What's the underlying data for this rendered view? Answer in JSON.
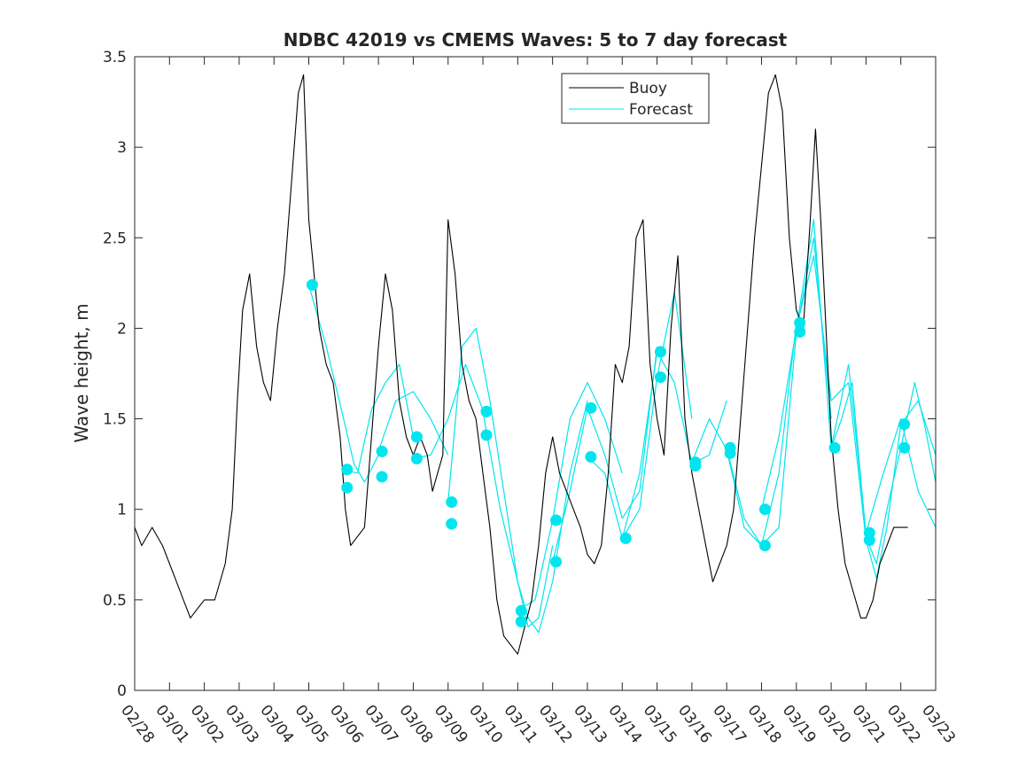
{
  "chart_data": {
    "type": "line",
    "title": "NDBC 42019 vs CMEMS Waves: 5 to 7 day forecast",
    "xlabel": "",
    "ylabel": "Wave height, m",
    "ylim": [
      0,
      3.5
    ],
    "xlim": [
      0,
      23
    ],
    "yticks": [
      0,
      0.5,
      1,
      1.5,
      2,
      2.5,
      3,
      3.5
    ],
    "ytick_labels": [
      "0",
      "0.5",
      "1",
      "1.5",
      "2",
      "2.5",
      "3",
      "3.5"
    ],
    "xticks": [
      0,
      1,
      2,
      3,
      4,
      5,
      6,
      7,
      8,
      9,
      10,
      11,
      12,
      13,
      14,
      15,
      16,
      17,
      18,
      19,
      20,
      21,
      22,
      23
    ],
    "xtick_labels": [
      "02/28",
      "03/01",
      "03/02",
      "03/03",
      "03/04",
      "03/05",
      "03/06",
      "03/07",
      "03/08",
      "03/09",
      "03/10",
      "03/11",
      "03/12",
      "03/13",
      "03/14",
      "03/15",
      "03/16",
      "03/17",
      "03/18",
      "03/19",
      "03/20",
      "03/21",
      "03/22",
      "03/23"
    ],
    "legend": {
      "position": "top-right",
      "entries": [
        "Buoy",
        "Forecast"
      ]
    },
    "colors": {
      "buoy": "#000000",
      "forecast": "#00e5ee",
      "axis": "#262626"
    },
    "series": [
      {
        "name": "Buoy",
        "x": [
          0,
          0.2,
          0.5,
          0.8,
          1.0,
          1.2,
          1.4,
          1.6,
          1.8,
          2.0,
          2.3,
          2.6,
          2.8,
          2.95,
          3.1,
          3.3,
          3.5,
          3.7,
          3.9,
          4.1,
          4.3,
          4.5,
          4.7,
          4.85,
          5.0,
          5.1,
          5.3,
          5.5,
          5.7,
          5.9,
          6.05,
          6.2,
          6.4,
          6.6,
          6.8,
          7.0,
          7.2,
          7.4,
          7.6,
          7.8,
          8.0,
          8.2,
          8.4,
          8.55,
          8.7,
          8.85,
          9.0,
          9.2,
          9.4,
          9.6,
          9.8,
          10.0,
          10.2,
          10.4,
          10.6,
          10.8,
          11.0,
          11.2,
          11.4,
          11.6,
          11.8,
          12.0,
          12.2,
          12.4,
          12.6,
          12.8,
          13.0,
          13.2,
          13.4,
          13.6,
          13.8,
          14.0,
          14.2,
          14.4,
          14.6,
          14.8,
          15.0,
          15.2,
          15.4,
          15.6,
          15.8,
          16.0,
          16.2,
          16.4,
          16.6,
          16.8,
          17.0,
          17.2,
          17.4,
          17.6,
          17.8,
          18.0,
          18.2,
          18.4,
          18.6,
          18.8,
          19.0,
          19.2,
          19.4,
          19.55,
          19.7,
          19.85,
          20.0,
          20.2,
          20.4,
          20.55,
          20.7,
          20.85,
          21.0,
          21.2,
          21.4,
          21.6,
          21.8,
          22.0,
          22.2
        ],
        "values": [
          0.9,
          0.8,
          0.9,
          0.8,
          0.7,
          0.6,
          0.5,
          0.4,
          0.45,
          0.5,
          0.5,
          0.7,
          1.0,
          1.6,
          2.1,
          2.3,
          1.9,
          1.7,
          1.6,
          2.0,
          2.3,
          2.8,
          3.3,
          3.4,
          2.6,
          2.4,
          2.0,
          1.8,
          1.7,
          1.4,
          1.0,
          0.8,
          0.85,
          0.9,
          1.4,
          1.9,
          2.3,
          2.1,
          1.6,
          1.4,
          1.3,
          1.4,
          1.3,
          1.1,
          1.2,
          1.3,
          2.6,
          2.3,
          1.8,
          1.6,
          1.5,
          1.2,
          0.9,
          0.5,
          0.3,
          0.25,
          0.2,
          0.35,
          0.5,
          0.8,
          1.2,
          1.4,
          1.2,
          1.1,
          1.0,
          0.9,
          0.75,
          0.7,
          0.8,
          1.2,
          1.8,
          1.7,
          1.9,
          2.5,
          2.6,
          1.8,
          1.5,
          1.3,
          2.0,
          2.4,
          1.5,
          1.2,
          1.0,
          0.8,
          0.6,
          0.7,
          0.8,
          1.0,
          1.5,
          2.0,
          2.5,
          2.9,
          3.3,
          3.4,
          3.2,
          2.5,
          2.1,
          2.0,
          2.6,
          3.1,
          2.6,
          2.0,
          1.4,
          1.0,
          0.7,
          0.6,
          0.5,
          0.4,
          0.4,
          0.5,
          0.7,
          0.8,
          0.9,
          0.9,
          0.9
        ]
      },
      {
        "name": "Forecast",
        "x": [
          5.0,
          5.5,
          6.0,
          6.3,
          6.6,
          7.0
        ],
        "values": [
          2.24,
          1.9,
          1.5,
          1.25,
          1.15,
          1.3
        ]
      },
      {
        "name": "Forecast",
        "x": [
          6.0,
          6.4,
          6.8,
          7.2,
          7.6,
          8.0
        ],
        "values": [
          1.22,
          1.2,
          1.55,
          1.7,
          1.8,
          1.4
        ]
      },
      {
        "name": "Forecast",
        "x": [
          7.0,
          7.5,
          8.0,
          8.5,
          9.0
        ],
        "values": [
          1.32,
          1.6,
          1.65,
          1.5,
          1.3
        ]
      },
      {
        "name": "Forecast",
        "x": [
          8.0,
          8.5,
          9.0,
          9.5,
          10.0
        ],
        "values": [
          1.28,
          1.3,
          1.5,
          1.8,
          1.55
        ]
      },
      {
        "name": "Forecast",
        "x": [
          9.0,
          9.4,
          9.8,
          10.2,
          10.6,
          11.0,
          11.3,
          11.6,
          12.0
        ],
        "values": [
          1.04,
          1.9,
          2.0,
          1.6,
          1.1,
          0.6,
          0.35,
          0.4,
          0.8
        ]
      },
      {
        "name": "Forecast",
        "x": [
          10.0,
          10.5,
          11.0,
          11.3,
          11.6,
          12.0,
          12.5,
          13.0
        ],
        "values": [
          1.54,
          1.0,
          0.6,
          0.4,
          0.32,
          0.6,
          1.2,
          1.6
        ]
      },
      {
        "name": "Forecast",
        "x": [
          11.0,
          11.5,
          12.0,
          12.5,
          13.0,
          13.5,
          14.0
        ],
        "values": [
          0.44,
          0.5,
          0.94,
          1.5,
          1.7,
          1.5,
          1.2
        ]
      },
      {
        "name": "Forecast",
        "x": [
          12.0,
          12.5,
          13.0,
          13.5,
          14.0,
          14.5,
          15.0
        ],
        "values": [
          0.71,
          1.1,
          1.56,
          1.3,
          0.95,
          1.1,
          1.9
        ]
      },
      {
        "name": "Forecast",
        "x": [
          13.0,
          13.5,
          14.0,
          14.5,
          15.0,
          15.5,
          16.0
        ],
        "values": [
          1.29,
          1.2,
          0.84,
          1.0,
          1.73,
          2.2,
          1.5
        ]
      },
      {
        "name": "Forecast",
        "x": [
          14.0,
          14.5,
          15.0,
          15.5,
          16.0,
          16.5,
          17.0
        ],
        "values": [
          0.84,
          1.2,
          1.87,
          1.7,
          1.25,
          1.3,
          1.6
        ]
      },
      {
        "name": "Forecast",
        "x": [
          16.0,
          16.5,
          17.0,
          17.5,
          18.0,
          18.5,
          19.0
        ],
        "values": [
          1.26,
          1.5,
          1.33,
          0.9,
          0.8,
          1.2,
          2.03
        ]
      },
      {
        "name": "Forecast",
        "x": [
          17.0,
          17.5,
          18.0,
          18.5,
          19.0,
          19.5,
          20.0
        ],
        "values": [
          1.34,
          0.95,
          0.8,
          0.9,
          1.98,
          2.5,
          1.5
        ]
      },
      {
        "name": "Forecast",
        "x": [
          18.0,
          18.5,
          19.0,
          19.5,
          20.0,
          20.5,
          21.0
        ],
        "values": [
          1.0,
          1.4,
          2.0,
          2.6,
          1.34,
          1.8,
          0.87
        ]
      },
      {
        "name": "Forecast",
        "x": [
          19.0,
          19.5,
          20.0,
          20.5,
          21.0,
          21.3,
          21.6,
          22.0,
          22.5,
          23.0
        ],
        "values": [
          2.0,
          2.4,
          1.6,
          1.7,
          0.83,
          0.62,
          0.9,
          1.47,
          1.6,
          1.3
        ]
      },
      {
        "name": "Forecast",
        "x": [
          20.0,
          20.3,
          20.6,
          21.0,
          21.3,
          21.6,
          22.0,
          22.4,
          22.7,
          23.0
        ],
        "values": [
          1.34,
          1.5,
          1.7,
          0.85,
          0.7,
          1.0,
          1.34,
          1.7,
          1.45,
          1.15
        ]
      },
      {
        "name": "Forecast",
        "x": [
          21.0,
          21.5,
          22.0,
          22.5,
          23.0
        ],
        "values": [
          0.87,
          1.2,
          1.5,
          1.1,
          0.9
        ]
      }
    ],
    "forecast_points": {
      "x": [
        5.1,
        6.1,
        6.1,
        7.1,
        7.1,
        8.1,
        8.1,
        9.1,
        9.1,
        10.1,
        10.1,
        11.1,
        11.1,
        12.1,
        12.1,
        13.1,
        13.1,
        14.1,
        15.1,
        15.1,
        16.1,
        16.1,
        17.1,
        17.1,
        18.1,
        18.1,
        19.1,
        19.1,
        20.1,
        21.1,
        21.1,
        22.1,
        22.1
      ],
      "values": [
        2.24,
        1.22,
        1.12,
        1.32,
        1.18,
        1.4,
        1.28,
        1.04,
        0.92,
        1.54,
        1.41,
        0.44,
        0.38,
        0.94,
        0.71,
        1.56,
        1.29,
        0.84,
        1.87,
        1.73,
        1.26,
        1.24,
        1.34,
        1.31,
        1.0,
        0.8,
        2.03,
        1.98,
        1.34,
        0.87,
        0.83,
        1.47,
        1.34
      ]
    }
  }
}
